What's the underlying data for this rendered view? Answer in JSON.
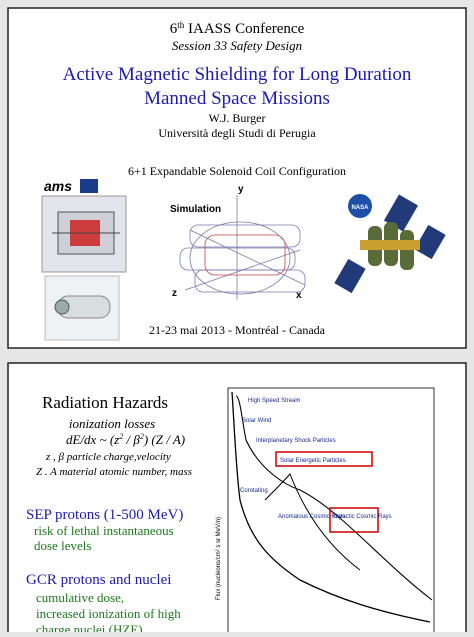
{
  "slide1": {
    "conference": {
      "number": "6",
      "ordinal": "th",
      "name": "IAASS Conference"
    },
    "session": "Session 33 Safety Design",
    "title_lines": [
      "Active Magnetic Shielding for Long Duration",
      "Manned Space Missions"
    ],
    "author": "W.J. Burger",
    "affiliation": "Università  degli Studi di Perugia",
    "subtitle": "6+1 Expandable Solenoid Coil Configuration",
    "logo_left": "ams",
    "logo_right": "NASA",
    "diagram": {
      "label": "Simulation",
      "axis_y": "y",
      "axis_z": "z",
      "axis_x": "x"
    },
    "footer": "21-23 mai 2013 - Montréal - Canada"
  },
  "slide2": {
    "title": "Radiation Hazards",
    "subtitle": "ionization losses",
    "formula": [
      "dE/dx ~ (z",
      "2",
      " / β",
      "2",
      ") (Z / A)"
    ],
    "note_lines": [
      "z , β particle charge,velocity",
      "Z . A material atomic number, mass"
    ],
    "sep": {
      "heading": "SEP protons (1-500 MeV)",
      "lines": [
        "risk of lethal instantaneous",
        "dose levels"
      ]
    },
    "gcr": {
      "heading": "GCR protons and nuclei",
      "lines": [
        "cumulative dose,",
        "increased ionization of high",
        "charge nuclei (HZE)"
      ]
    },
    "figure": {
      "y_label": "Flux (nucleons/cm² s sr MeV/n)",
      "labels": [
        "High Speed Stream",
        "Solar Wind",
        "Interplanetary Shock Particles",
        "Solar Energetic Particles",
        "Corotating",
        "Anomalous Cosmic Rays",
        "Galactic Cosmic Rays"
      ]
    }
  }
}
